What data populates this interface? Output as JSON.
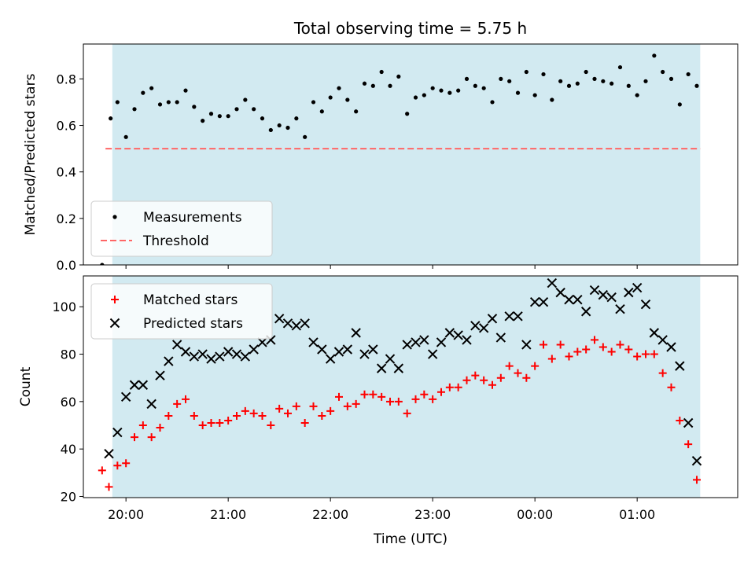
{
  "chart_data": [
    {
      "type": "scatter",
      "title": "Total observing time = 5.75 h",
      "ylabel": "Matched/Predicted stars",
      "xlabel": "",
      "ylim": [
        0,
        0.95
      ],
      "xlim": [
        "19:35",
        "01:59"
      ],
      "yticks": [
        "0.0",
        "0.2",
        "0.4",
        "0.6",
        "0.8"
      ],
      "shaded_span": [
        "19:52",
        "01:37"
      ],
      "shade_color": "#add8e6",
      "threshold": {
        "name": "Threshold",
        "value": 0.5,
        "from": "19:48",
        "to": "01:37",
        "color": "#ff6666",
        "style": "dashed"
      },
      "legend_position": "lower left",
      "series": [
        {
          "name": "Measurements",
          "marker": "dot",
          "color": "#000000",
          "points": [
            [
              "19:46",
              0.0
            ],
            [
              "19:51",
              0.63
            ],
            [
              "19:55",
              0.7
            ],
            [
              "20:00",
              0.55
            ],
            [
              "20:05",
              0.67
            ],
            [
              "20:10",
              0.74
            ],
            [
              "20:15",
              0.76
            ],
            [
              "20:20",
              0.69
            ],
            [
              "20:25",
              0.7
            ],
            [
              "20:30",
              0.7
            ],
            [
              "20:35",
              0.75
            ],
            [
              "20:40",
              0.68
            ],
            [
              "20:45",
              0.62
            ],
            [
              "20:50",
              0.65
            ],
            [
              "20:55",
              0.64
            ],
            [
              "21:00",
              0.64
            ],
            [
              "21:05",
              0.67
            ],
            [
              "21:10",
              0.71
            ],
            [
              "21:15",
              0.67
            ],
            [
              "21:20",
              0.63
            ],
            [
              "21:25",
              0.58
            ],
            [
              "21:30",
              0.6
            ],
            [
              "21:35",
              0.59
            ],
            [
              "21:40",
              0.63
            ],
            [
              "21:45",
              0.55
            ],
            [
              "21:50",
              0.7
            ],
            [
              "21:55",
              0.66
            ],
            [
              "22:00",
              0.72
            ],
            [
              "22:05",
              0.76
            ],
            [
              "22:10",
              0.71
            ],
            [
              "22:15",
              0.66
            ],
            [
              "22:20",
              0.78
            ],
            [
              "22:25",
              0.77
            ],
            [
              "22:30",
              0.83
            ],
            [
              "22:35",
              0.77
            ],
            [
              "22:40",
              0.81
            ],
            [
              "22:45",
              0.65
            ],
            [
              "22:50",
              0.72
            ],
            [
              "22:55",
              0.73
            ],
            [
              "23:00",
              0.76
            ],
            [
              "23:05",
              0.75
            ],
            [
              "23:10",
              0.74
            ],
            [
              "23:15",
              0.75
            ],
            [
              "23:20",
              0.8
            ],
            [
              "23:25",
              0.77
            ],
            [
              "23:30",
              0.76
            ],
            [
              "23:35",
              0.7
            ],
            [
              "23:40",
              0.8
            ],
            [
              "23:45",
              0.79
            ],
            [
              "23:50",
              0.74
            ],
            [
              "23:55",
              0.83
            ],
            [
              "00:00",
              0.73
            ],
            [
              "00:05",
              0.82
            ],
            [
              "00:10",
              0.71
            ],
            [
              "00:15",
              0.79
            ],
            [
              "00:20",
              0.77
            ],
            [
              "00:25",
              0.78
            ],
            [
              "00:30",
              0.83
            ],
            [
              "00:35",
              0.8
            ],
            [
              "00:40",
              0.79
            ],
            [
              "00:45",
              0.78
            ],
            [
              "00:50",
              0.85
            ],
            [
              "00:55",
              0.77
            ],
            [
              "01:00",
              0.73
            ],
            [
              "01:05",
              0.79
            ],
            [
              "01:10",
              0.9
            ],
            [
              "01:15",
              0.83
            ],
            [
              "01:20",
              0.8
            ],
            [
              "01:25",
              0.69
            ],
            [
              "01:30",
              0.82
            ],
            [
              "01:35",
              0.77
            ]
          ]
        }
      ]
    },
    {
      "type": "scatter",
      "title": "",
      "ylabel": "Count",
      "xlabel": "Time (UTC)",
      "ylim": [
        19.5,
        113
      ],
      "xlim": [
        "19:35",
        "01:59"
      ],
      "yticks": [
        "20",
        "40",
        "60",
        "80",
        "100"
      ],
      "xticks": [
        "20:00",
        "21:00",
        "22:00",
        "23:00",
        "00:00",
        "01:00"
      ],
      "shaded_span": [
        "19:52",
        "01:37"
      ],
      "shade_color": "#add8e6",
      "legend_position": "upper left",
      "series": [
        {
          "name": "Matched stars",
          "marker": "plus",
          "color": "#ff0000",
          "points": [
            [
              "19:46",
              31
            ],
            [
              "19:50",
              24
            ],
            [
              "19:55",
              33
            ],
            [
              "20:00",
              34
            ],
            [
              "20:05",
              45
            ],
            [
              "20:10",
              50
            ],
            [
              "20:15",
              45
            ],
            [
              "20:20",
              49
            ],
            [
              "20:25",
              54
            ],
            [
              "20:30",
              59
            ],
            [
              "20:35",
              61
            ],
            [
              "20:40",
              54
            ],
            [
              "20:45",
              50
            ],
            [
              "20:50",
              51
            ],
            [
              "20:55",
              51
            ],
            [
              "21:00",
              52
            ],
            [
              "21:05",
              54
            ],
            [
              "21:10",
              56
            ],
            [
              "21:15",
              55
            ],
            [
              "21:20",
              54
            ],
            [
              "21:25",
              50
            ],
            [
              "21:30",
              57
            ],
            [
              "21:35",
              55
            ],
            [
              "21:40",
              58
            ],
            [
              "21:45",
              51
            ],
            [
              "21:50",
              58
            ],
            [
              "21:55",
              54
            ],
            [
              "22:00",
              56
            ],
            [
              "22:05",
              62
            ],
            [
              "22:10",
              58
            ],
            [
              "22:15",
              59
            ],
            [
              "22:20",
              63
            ],
            [
              "22:25",
              63
            ],
            [
              "22:30",
              62
            ],
            [
              "22:35",
              60
            ],
            [
              "22:40",
              60
            ],
            [
              "22:45",
              55
            ],
            [
              "22:50",
              61
            ],
            [
              "22:55",
              63
            ],
            [
              "23:00",
              61
            ],
            [
              "23:05",
              64
            ],
            [
              "23:10",
              66
            ],
            [
              "23:15",
              66
            ],
            [
              "23:20",
              69
            ],
            [
              "23:25",
              71
            ],
            [
              "23:30",
              69
            ],
            [
              "23:35",
              67
            ],
            [
              "23:40",
              70
            ],
            [
              "23:45",
              75
            ],
            [
              "23:50",
              72
            ],
            [
              "23:55",
              70
            ],
            [
              "00:00",
              75
            ],
            [
              "00:05",
              84
            ],
            [
              "00:10",
              78
            ],
            [
              "00:15",
              84
            ],
            [
              "00:20",
              79
            ],
            [
              "00:25",
              81
            ],
            [
              "00:30",
              82
            ],
            [
              "00:35",
              86
            ],
            [
              "00:40",
              83
            ],
            [
              "00:45",
              81
            ],
            [
              "00:50",
              84
            ],
            [
              "00:55",
              82
            ],
            [
              "01:00",
              79
            ],
            [
              "01:05",
              80
            ],
            [
              "01:10",
              80
            ],
            [
              "01:15",
              72
            ],
            [
              "01:20",
              66
            ],
            [
              "01:25",
              52
            ],
            [
              "01:30",
              42
            ],
            [
              "01:35",
              27
            ]
          ]
        },
        {
          "name": "Predicted stars",
          "marker": "x",
          "color": "#000000",
          "points": [
            [
              "19:50",
              38
            ],
            [
              "19:55",
              47
            ],
            [
              "20:00",
              62
            ],
            [
              "20:05",
              67
            ],
            [
              "20:10",
              67
            ],
            [
              "20:15",
              59
            ],
            [
              "20:20",
              71
            ],
            [
              "20:25",
              77
            ],
            [
              "20:30",
              84
            ],
            [
              "20:35",
              81
            ],
            [
              "20:40",
              79
            ],
            [
              "20:45",
              80
            ],
            [
              "20:50",
              78
            ],
            [
              "20:55",
              79
            ],
            [
              "21:00",
              81
            ],
            [
              "21:05",
              80
            ],
            [
              "21:10",
              79
            ],
            [
              "21:15",
              82
            ],
            [
              "21:20",
              85
            ],
            [
              "21:25",
              86
            ],
            [
              "21:30",
              95
            ],
            [
              "21:35",
              93
            ],
            [
              "21:40",
              92
            ],
            [
              "21:45",
              93
            ],
            [
              "21:50",
              85
            ],
            [
              "21:55",
              82
            ],
            [
              "22:00",
              78
            ],
            [
              "22:05",
              81
            ],
            [
              "22:10",
              82
            ],
            [
              "22:15",
              89
            ],
            [
              "22:20",
              80
            ],
            [
              "22:25",
              82
            ],
            [
              "22:30",
              74
            ],
            [
              "22:35",
              78
            ],
            [
              "22:40",
              74
            ],
            [
              "22:45",
              84
            ],
            [
              "22:50",
              85
            ],
            [
              "22:55",
              86
            ],
            [
              "23:00",
              80
            ],
            [
              "23:05",
              85
            ],
            [
              "23:10",
              89
            ],
            [
              "23:15",
              88
            ],
            [
              "23:20",
              86
            ],
            [
              "23:25",
              92
            ],
            [
              "23:30",
              91
            ],
            [
              "23:35",
              95
            ],
            [
              "23:40",
              87
            ],
            [
              "23:45",
              96
            ],
            [
              "23:50",
              96
            ],
            [
              "23:55",
              84
            ],
            [
              "00:00",
              102
            ],
            [
              "00:05",
              102
            ],
            [
              "00:10",
              110
            ],
            [
              "00:15",
              106
            ],
            [
              "00:20",
              103
            ],
            [
              "00:25",
              103
            ],
            [
              "00:30",
              98
            ],
            [
              "00:35",
              107
            ],
            [
              "00:40",
              105
            ],
            [
              "00:45",
              104
            ],
            [
              "00:50",
              99
            ],
            [
              "00:55",
              106
            ],
            [
              "01:00",
              108
            ],
            [
              "01:05",
              101
            ],
            [
              "01:10",
              89
            ],
            [
              "01:15",
              86
            ],
            [
              "01:20",
              83
            ],
            [
              "01:25",
              75
            ],
            [
              "01:30",
              51
            ],
            [
              "01:35",
              35
            ]
          ]
        }
      ]
    }
  ]
}
